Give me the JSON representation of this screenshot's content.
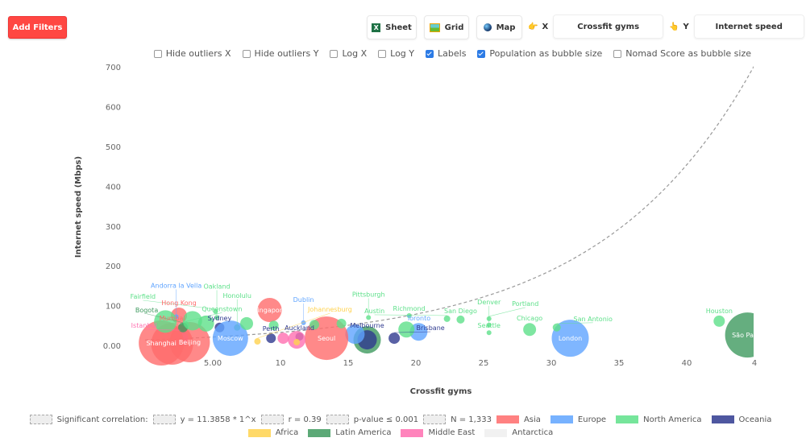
{
  "toolbar": {
    "add_filters": "Add Filters",
    "sheet": "Sheet",
    "grid": "Grid",
    "map": "Map",
    "x_label": "X",
    "x_value": "Crossfit gyms",
    "y_label": "Y",
    "y_value": "Internet speed"
  },
  "options": [
    {
      "label": "Hide outliers X",
      "checked": false
    },
    {
      "label": "Hide outliers Y",
      "checked": false
    },
    {
      "label": "Log X",
      "checked": false
    },
    {
      "label": "Log Y",
      "checked": false
    },
    {
      "label": "Labels",
      "checked": true
    },
    {
      "label": "Population as bubble size",
      "checked": true
    },
    {
      "label": "Nomad Score as bubble size",
      "checked": false
    }
  ],
  "legend": {
    "significant": "Significant correlation:",
    "equation": "y = 11.3858 * 1^x",
    "r": "r = 0.39",
    "p": "p-value ≤ 0.001",
    "n": "N = 1,333"
  },
  "chart_data": {
    "type": "scatter",
    "xlabel": "Crossfit gyms",
    "ylabel": "Internet speed (Mbps)",
    "xlim": [
      0,
      45
    ],
    "ylim": [
      0,
      700
    ],
    "xticks": [
      "5.00",
      "10",
      "15",
      "20",
      "25",
      "30",
      "35",
      "40",
      "4"
    ],
    "yticks": [
      "0.00",
      "100",
      "200",
      "300",
      "400",
      "500",
      "600",
      "700"
    ],
    "grid": false,
    "legend_position": "bottom",
    "regions": [
      {
        "name": "Asia",
        "color": "#ff6b6b"
      },
      {
        "name": "Europe",
        "color": "#5fa4ff"
      },
      {
        "name": "North America",
        "color": "#5ee08a"
      },
      {
        "name": "Oceania",
        "color": "#2f3a8f"
      },
      {
        "name": "Africa",
        "color": "#ffd24d"
      },
      {
        "name": "Latin America",
        "color": "#3f9a5f"
      },
      {
        "name": "Middle East",
        "color": "#ff6fb0"
      },
      {
        "name": "Antarctica",
        "color": "#eeeeee"
      }
    ],
    "points": [
      {
        "label": "São Paulo",
        "region": "Latin America",
        "x": 44.5,
        "y": 26,
        "size": 28
      },
      {
        "label": "Houston",
        "region": "North America",
        "x": 42.4,
        "y": 61,
        "size": 7
      },
      {
        "label": "London",
        "region": "Europe",
        "x": 31.4,
        "y": 18,
        "size": 23
      },
      {
        "label": "San Antonio",
        "region": "North America",
        "x": 30.4,
        "y": 45,
        "size": 5
      },
      {
        "label": "Chicago",
        "region": "North America",
        "x": 28.4,
        "y": 40,
        "size": 8
      },
      {
        "label": "Portland",
        "region": "North America",
        "x": 25.4,
        "y": 67,
        "size": 3
      },
      {
        "label": "Denver",
        "region": "North America",
        "x": 25.4,
        "y": 51,
        "size": 3
      },
      {
        "label": "Seattle",
        "region": "North America",
        "x": 25.4,
        "y": 32,
        "size": 3
      },
      {
        "label": "San Diego",
        "region": "North America",
        "x": 23.3,
        "y": 65,
        "size": 5
      },
      {
        "label": "Austin",
        "region": "North America",
        "x": 22.3,
        "y": 67,
        "size": 4
      },
      {
        "label": "Toronto",
        "region": "Europe",
        "x": 20.2,
        "y": 34,
        "size": 11
      },
      {
        "label": "Richmond",
        "region": "North America",
        "x": 19.5,
        "y": 75,
        "size": 3
      },
      {
        "label": "",
        "region": "North America",
        "x": 19.3,
        "y": 40,
        "size": 10
      },
      {
        "label": "Brisbane",
        "region": "Oceania",
        "x": 18.4,
        "y": 18,
        "size": 7
      },
      {
        "label": "Pittsburgh",
        "region": "North America",
        "x": 16.5,
        "y": 70,
        "size": 3
      },
      {
        "label": "",
        "region": "Latin America",
        "x": 16.4,
        "y": 14,
        "size": 17
      },
      {
        "label": "Melbourne",
        "region": "Oceania",
        "x": 16.4,
        "y": 14,
        "size": 12
      },
      {
        "label": "",
        "region": "Europe",
        "x": 15.5,
        "y": 28,
        "size": 12
      },
      {
        "label": "Seoul",
        "region": "Asia",
        "x": 13.4,
        "y": 18,
        "size": 27
      },
      {
        "label": "Auckland",
        "region": "Oceania",
        "x": 11.4,
        "y": 22,
        "size": 5
      },
      {
        "label": "",
        "region": "Middle East",
        "x": 11.2,
        "y": 14,
        "size": 11
      },
      {
        "label": "Dublin",
        "region": "Europe",
        "x": 11.7,
        "y": 57,
        "size": 3
      },
      {
        "label": "",
        "region": "Middle East",
        "x": 10.2,
        "y": 18,
        "size": 7
      },
      {
        "label": "Singapore",
        "region": "Asia",
        "x": 9.2,
        "y": 89,
        "size": 15
      },
      {
        "label": "Perth",
        "region": "Oceania",
        "x": 9.3,
        "y": 18,
        "size": 6
      },
      {
        "label": "Johannesburg",
        "region": "Africa",
        "x": 8.3,
        "y": 10,
        "size": 4
      },
      {
        "label": "Honolulu",
        "region": "North America",
        "x": 6.8,
        "y": 45,
        "size": 4
      },
      {
        "label": "Sydney",
        "region": "Oceania",
        "x": 5.5,
        "y": 45,
        "size": 6
      },
      {
        "label": "Moscow",
        "region": "Europe",
        "x": 6.3,
        "y": 18,
        "size": 22
      },
      {
        "label": "Fairfield",
        "region": "North America",
        "x": 5.2,
        "y": 85,
        "size": 3
      },
      {
        "label": "Oakland",
        "region": "North America",
        "x": 5.3,
        "y": 70,
        "size": 3
      },
      {
        "label": "Beijing",
        "region": "Asia",
        "x": 3.3,
        "y": 8,
        "size": 25
      },
      {
        "label": "Queenstown",
        "region": "North America",
        "x": 3.0,
        "y": 50,
        "size": 5
      },
      {
        "label": "Istanbul",
        "region": "Middle East",
        "x": 2.6,
        "y": 18,
        "size": 10
      },
      {
        "label": "Hong Kong",
        "region": "Asia",
        "x": 2.5,
        "y": 75,
        "size": 10
      },
      {
        "label": "Andorra la Vella",
        "region": "Europe",
        "x": 2.3,
        "y": 72,
        "size": 3
      },
      {
        "label": "Shanghai",
        "region": "Asia",
        "x": 1.2,
        "y": 6,
        "size": 28
      },
      {
        "label": "Mumbai",
        "region": "Asia",
        "x": 2.0,
        "y": 4,
        "size": 26
      },
      {
        "label": "Bogota",
        "region": "Latin America",
        "x": 2.8,
        "y": 45,
        "size": 6
      },
      {
        "label": "",
        "region": "North America",
        "x": 1.5,
        "y": 60,
        "size": 14
      },
      {
        "label": "",
        "region": "North America",
        "x": 3.5,
        "y": 62,
        "size": 12
      },
      {
        "label": "",
        "region": "North America",
        "x": 4.5,
        "y": 55,
        "size": 10
      },
      {
        "label": "",
        "region": "North America",
        "x": 7.5,
        "y": 55,
        "size": 8
      },
      {
        "label": "",
        "region": "North America",
        "x": 9.5,
        "y": 50,
        "size": 6
      },
      {
        "label": "",
        "region": "North America",
        "x": 12.5,
        "y": 52,
        "size": 6
      },
      {
        "label": "",
        "region": "North America",
        "x": 14.5,
        "y": 55,
        "size": 6
      },
      {
        "label": "",
        "region": "Africa",
        "x": 11.2,
        "y": 8,
        "size": 4
      }
    ]
  }
}
